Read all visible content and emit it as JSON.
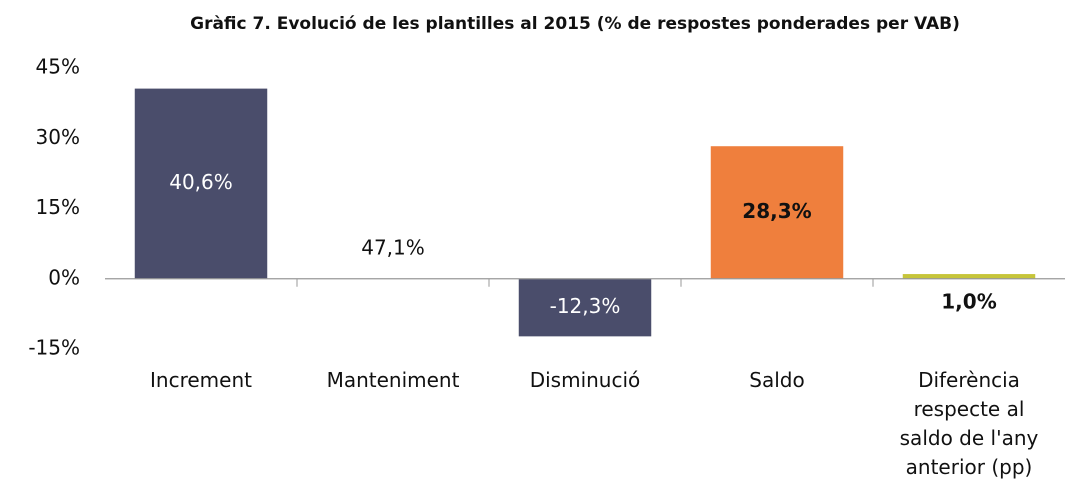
{
  "chart_data": {
    "type": "bar",
    "title": "Gràfic 7. Evolució de les plantilles al 2015 (% de respostes ponderades per VAB)",
    "categories": [
      "Increment",
      "Manteniment",
      "Disminució",
      "Saldo",
      "Diferència respecte al saldo de l'any anterior (pp)"
    ],
    "values": [
      40.6,
      47.1,
      -12.3,
      28.3,
      1.0
    ],
    "value_labels": [
      "40,6%",
      "47,1%",
      "-12,3%",
      "28,3%",
      "1,0%"
    ],
    "value_label_bold": [
      false,
      false,
      false,
      true,
      true
    ],
    "colors": [
      "#4a4d6b",
      "none",
      "#4a4d6b",
      "#ef7f3d",
      "#c6c53a"
    ],
    "ylim": [
      -15,
      45
    ],
    "yticks": [
      {
        "value": -15,
        "label": "-15%"
      },
      {
        "value": 0,
        "label": "0%"
      },
      {
        "value": 15,
        "label": "15%"
      },
      {
        "value": 30,
        "label": "30%"
      },
      {
        "value": 45,
        "label": "45%"
      }
    ],
    "grid": false
  }
}
